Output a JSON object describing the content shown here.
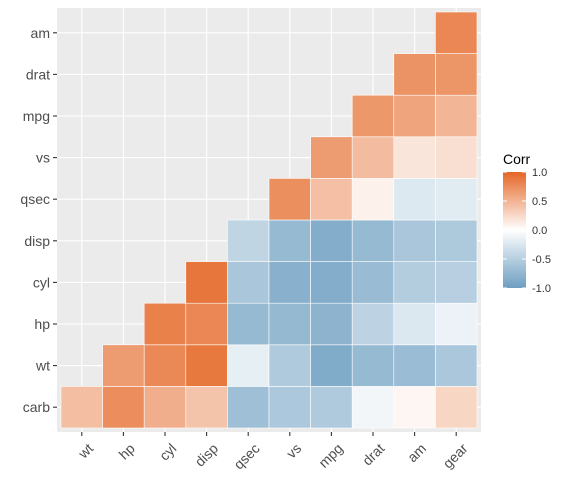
{
  "chart_data": {
    "type": "heatmap",
    "title": "",
    "xlabel": "",
    "ylabel": "",
    "x_categories": [
      "wt",
      "hp",
      "cyl",
      "disp",
      "qsec",
      "vs",
      "mpg",
      "drat",
      "am",
      "gear"
    ],
    "y_categories": [
      "carb",
      "wt",
      "hp",
      "cyl",
      "disp",
      "qsec",
      "vs",
      "mpg",
      "drat",
      "am"
    ],
    "cells": [
      {
        "x": "wt",
        "y": "carb",
        "value": 0.43
      },
      {
        "x": "hp",
        "y": "carb",
        "value": 0.75
      },
      {
        "x": "cyl",
        "y": "carb",
        "value": 0.53
      },
      {
        "x": "disp",
        "y": "carb",
        "value": 0.39
      },
      {
        "x": "qsec",
        "y": "carb",
        "value": -0.66
      },
      {
        "x": "vs",
        "y": "carb",
        "value": -0.57
      },
      {
        "x": "mpg",
        "y": "carb",
        "value": -0.55
      },
      {
        "x": "drat",
        "y": "carb",
        "value": -0.09
      },
      {
        "x": "am",
        "y": "carb",
        "value": 0.06
      },
      {
        "x": "gear",
        "y": "carb",
        "value": 0.27
      },
      {
        "x": "hp",
        "y": "wt",
        "value": 0.66
      },
      {
        "x": "cyl",
        "y": "wt",
        "value": 0.78
      },
      {
        "x": "disp",
        "y": "wt",
        "value": 0.89
      },
      {
        "x": "qsec",
        "y": "wt",
        "value": -0.17
      },
      {
        "x": "vs",
        "y": "wt",
        "value": -0.55
      },
      {
        "x": "mpg",
        "y": "wt",
        "value": -0.87
      },
      {
        "x": "drat",
        "y": "wt",
        "value": -0.71
      },
      {
        "x": "am",
        "y": "wt",
        "value": -0.69
      },
      {
        "x": "gear",
        "y": "wt",
        "value": -0.58
      },
      {
        "x": "cyl",
        "y": "hp",
        "value": 0.83
      },
      {
        "x": "disp",
        "y": "hp",
        "value": 0.79
      },
      {
        "x": "qsec",
        "y": "hp",
        "value": -0.71
      },
      {
        "x": "vs",
        "y": "hp",
        "value": -0.72
      },
      {
        "x": "mpg",
        "y": "hp",
        "value": -0.78
      },
      {
        "x": "drat",
        "y": "hp",
        "value": -0.45
      },
      {
        "x": "am",
        "y": "hp",
        "value": -0.24
      },
      {
        "x": "gear",
        "y": "hp",
        "value": -0.13
      },
      {
        "x": "disp",
        "y": "cyl",
        "value": 0.9
      },
      {
        "x": "qsec",
        "y": "cyl",
        "value": -0.59
      },
      {
        "x": "vs",
        "y": "cyl",
        "value": -0.81
      },
      {
        "x": "mpg",
        "y": "cyl",
        "value": -0.85
      },
      {
        "x": "drat",
        "y": "cyl",
        "value": -0.7
      },
      {
        "x": "am",
        "y": "cyl",
        "value": -0.52
      },
      {
        "x": "gear",
        "y": "cyl",
        "value": -0.49
      },
      {
        "x": "qsec",
        "y": "disp",
        "value": -0.43
      },
      {
        "x": "vs",
        "y": "disp",
        "value": -0.71
      },
      {
        "x": "mpg",
        "y": "disp",
        "value": -0.85
      },
      {
        "x": "drat",
        "y": "disp",
        "value": -0.71
      },
      {
        "x": "am",
        "y": "disp",
        "value": -0.59
      },
      {
        "x": "gear",
        "y": "disp",
        "value": -0.56
      },
      {
        "x": "vs",
        "y": "qsec",
        "value": 0.74
      },
      {
        "x": "mpg",
        "y": "qsec",
        "value": 0.42
      },
      {
        "x": "drat",
        "y": "qsec",
        "value": 0.09
      },
      {
        "x": "am",
        "y": "qsec",
        "value": -0.23
      },
      {
        "x": "gear",
        "y": "qsec",
        "value": -0.21
      },
      {
        "x": "mpg",
        "y": "vs",
        "value": 0.66
      },
      {
        "x": "drat",
        "y": "vs",
        "value": 0.44
      },
      {
        "x": "am",
        "y": "vs",
        "value": 0.17
      },
      {
        "x": "gear",
        "y": "vs",
        "value": 0.21
      },
      {
        "x": "drat",
        "y": "mpg",
        "value": 0.68
      },
      {
        "x": "am",
        "y": "mpg",
        "value": 0.6
      },
      {
        "x": "gear",
        "y": "mpg",
        "value": 0.48
      },
      {
        "x": "am",
        "y": "drat",
        "value": 0.71
      },
      {
        "x": "gear",
        "y": "drat",
        "value": 0.7
      },
      {
        "x": "gear",
        "y": "am",
        "value": 0.79
      }
    ],
    "legend": {
      "title": "Corr",
      "placement": "right",
      "ticks": [
        {
          "value": 1,
          "label": "1.0"
        },
        {
          "value": 0.5,
          "label": "0.5"
        },
        {
          "value": 0,
          "label": "0.0"
        },
        {
          "value": -0.5,
          "label": "-0.5"
        },
        {
          "value": -1,
          "label": "-1.0"
        }
      ],
      "range": [
        -1,
        1
      ]
    },
    "colors": {
      "low": "#6D9EC1",
      "mid": "#FFFFFF",
      "high": "#E46726",
      "panel_background": "#EBEBEB",
      "grid": "#FFFFFF",
      "axis_text": "#4D4D4D"
    },
    "grid": true
  }
}
